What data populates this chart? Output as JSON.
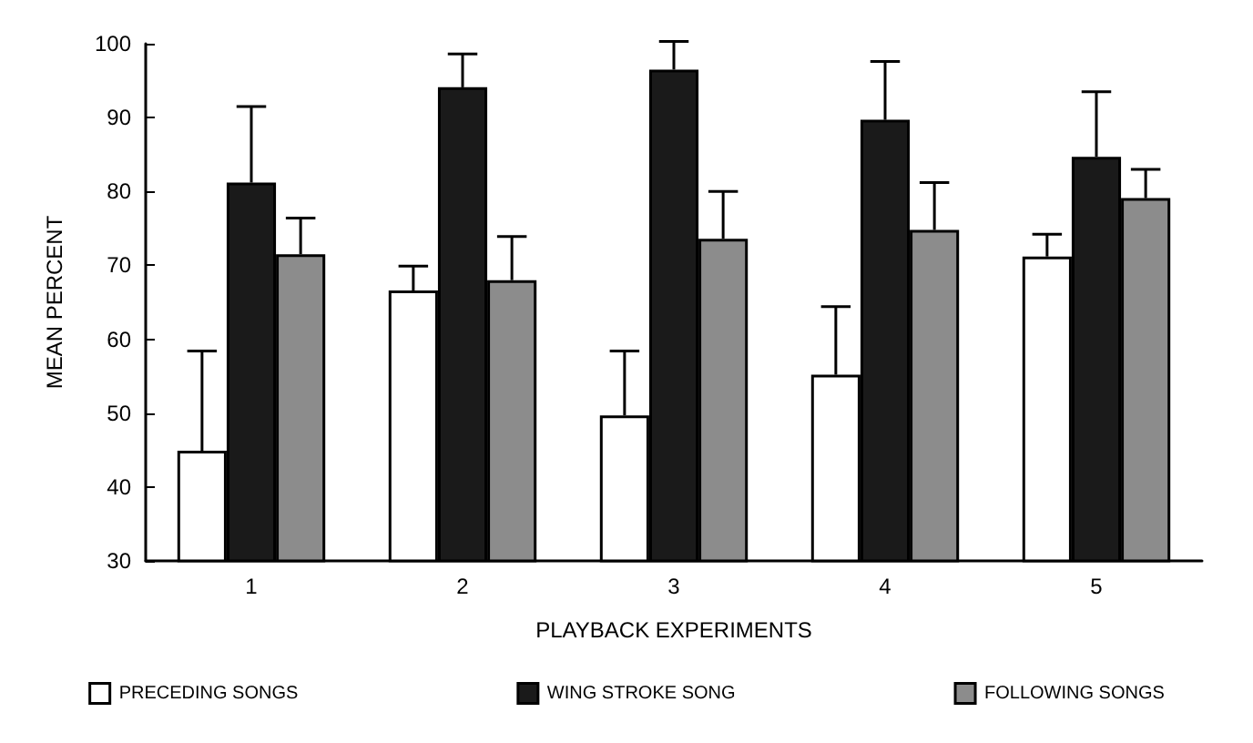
{
  "chart_data": {
    "type": "bar",
    "xlabel": "PLAYBACK EXPERIMENTS",
    "ylabel": "MEAN PERCENT",
    "categories": [
      "1",
      "2",
      "3",
      "4",
      "5"
    ],
    "series": [
      {
        "name": "PRECEDING SONGS",
        "color": "#ffffff",
        "values": [
          44.9,
          66.6,
          49.7,
          55.2,
          71.2
        ],
        "errors": [
          [
            44.9,
            58.4
          ],
          [
            66.6,
            69.9
          ],
          [
            49.7,
            58.4
          ],
          [
            55.2,
            64.4
          ],
          [
            71.2,
            74.2
          ]
        ]
      },
      {
        "name": "WING STROKE SONG",
        "color": "#1a1a1a",
        "values": [
          81.2,
          94.1,
          96.5,
          89.7,
          84.7
        ],
        "errors": [
          [
            81.2,
            91.5
          ],
          [
            94.1,
            98.6
          ],
          [
            96.5,
            100.3
          ],
          [
            89.7,
            97.6
          ],
          [
            84.7,
            93.5
          ]
        ]
      },
      {
        "name": "FOLLOWING SONGS",
        "color": "#8c8c8c",
        "values": [
          71.5,
          68.0,
          73.6,
          74.8,
          79.1
        ],
        "errors": [
          [
            71.5,
            76.4
          ],
          [
            68.0,
            73.9
          ],
          [
            73.6,
            80.0
          ],
          [
            74.8,
            81.2
          ],
          [
            79.1,
            83.0
          ]
        ]
      }
    ],
    "ylim": [
      30,
      100
    ],
    "yticks": [
      30,
      40,
      50,
      60,
      70,
      80,
      90,
      100
    ],
    "grid": false,
    "legend": "bottom"
  }
}
